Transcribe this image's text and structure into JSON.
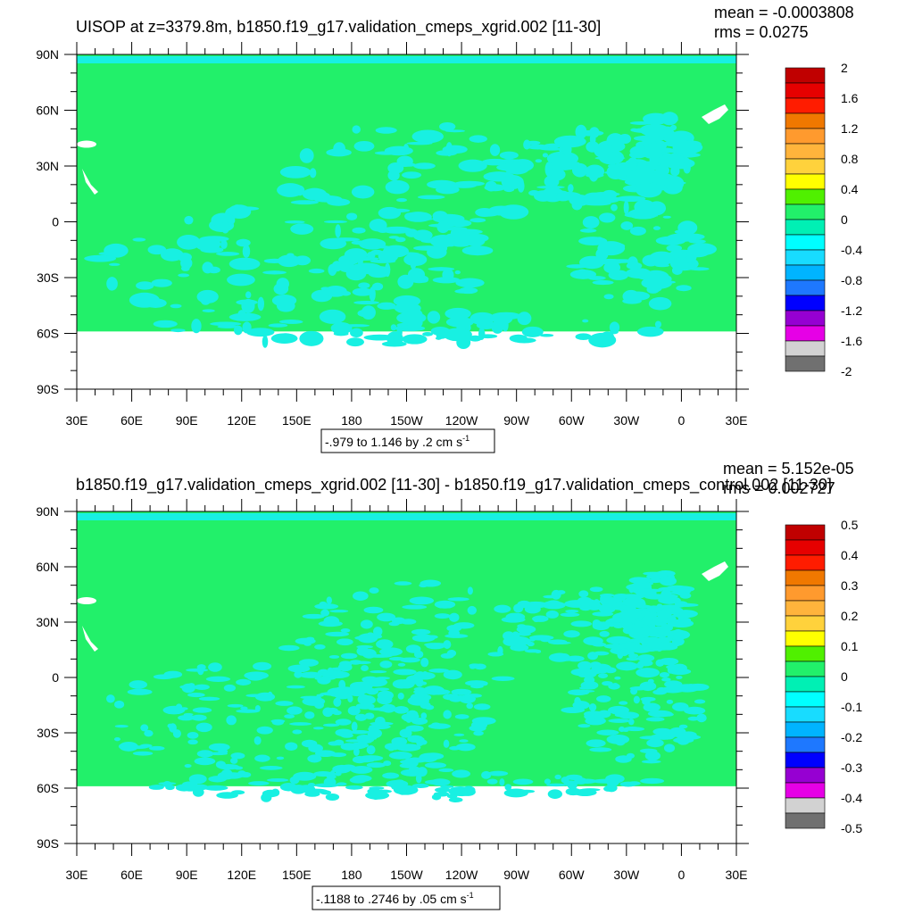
{
  "colors": {
    "ocean_green": "#22f06a",
    "ocean_cyan": "#18f0e2",
    "land_white": "#ffffff"
  },
  "panels": [
    {
      "title": "UISOP at z=3379.8m, b1850.f19_g17.validation_cmeps_xgrid.002 [11-30]",
      "stat_mean": "mean = -0.0003808",
      "stat_rms": "rms = 0.0275",
      "range_label_main": "-.979 to 1.146 by .2 cm s",
      "range_label_sup": "-1",
      "colorbar_labels": [
        "2",
        "1.6",
        "1.2",
        "0.8",
        "0.4",
        "0",
        "-0.4",
        "-0.8",
        "-1.2",
        "-1.6",
        "-2"
      ]
    },
    {
      "title": "b1850.f19_g17.validation_cmeps_xgrid.002 [11-30] - b1850.f19_g17.validation_cmeps_control.002 [11-30]",
      "stat_mean": "mean = 5.152e-05",
      "stat_rms": "rms = 0.002727",
      "range_label_main": "-.1188 to .2746 by .05 cm s",
      "range_label_sup": "-1",
      "colorbar_labels": [
        "0.5",
        "0.4",
        "0.3",
        "0.2",
        "0.1",
        "0",
        "-0.1",
        "-0.2",
        "-0.3",
        "-0.4",
        "-0.5"
      ]
    }
  ],
  "colorbar_colors": [
    "#c00000",
    "#e60000",
    "#ff1c00",
    "#f07800",
    "#ff9a2e",
    "#ffb43c",
    "#ffd23c",
    "#ffff00",
    "#50f000",
    "#22f06a",
    "#00f0b4",
    "#00ffff",
    "#18dcff",
    "#00b4ff",
    "#1e78ff",
    "#0000ff",
    "#9600d2",
    "#e600e6",
    "#d2d2d2",
    "#707070"
  ],
  "axes": {
    "lat_labels": [
      "90N",
      "60N",
      "30N",
      "0",
      "30S",
      "60S",
      "90S"
    ],
    "lon_labels": [
      "30E",
      "60E",
      "90E",
      "120E",
      "150E",
      "180",
      "150W",
      "120W",
      "90W",
      "60W",
      "30W",
      "0",
      "30E"
    ]
  }
}
